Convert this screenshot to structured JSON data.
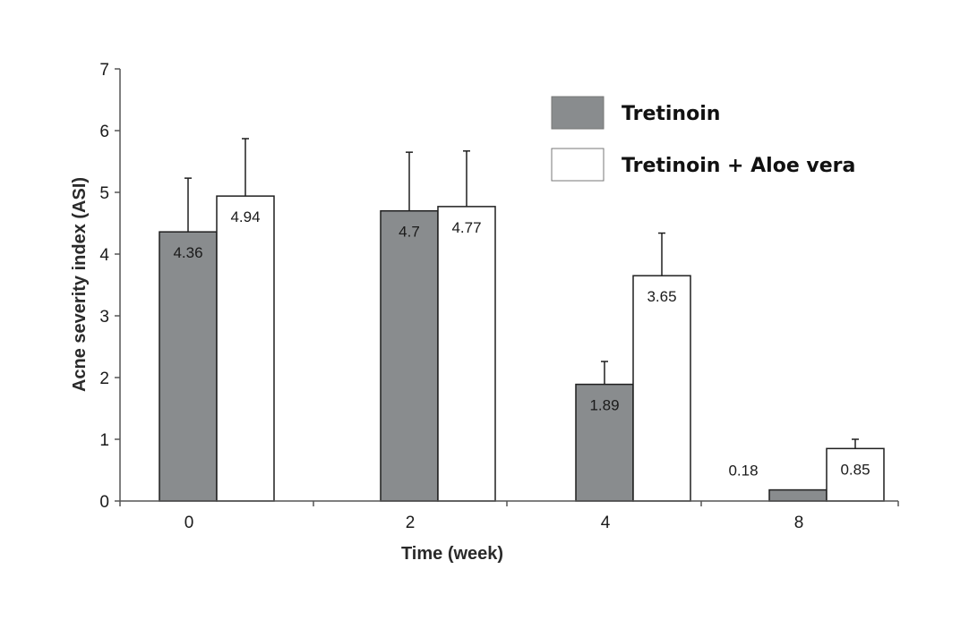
{
  "chart_data": {
    "type": "bar",
    "title": "",
    "xlabel": "Time (week)",
    "ylabel": "Acne severity index (ASI)",
    "categories": [
      "0",
      "2",
      "4",
      "8"
    ],
    "ylim": [
      0,
      7
    ],
    "yticks": [
      "0",
      "1",
      "2",
      "3",
      "4",
      "5",
      "6",
      "7"
    ],
    "grid": false,
    "legend_position": "top-right",
    "series": [
      {
        "name": "Tretinoin",
        "color": "#898c8e",
        "values": [
          4.36,
          4.7,
          1.89,
          0.18
        ],
        "errors": [
          0.87,
          0.95,
          0.37,
          0.0
        ],
        "labels": [
          "4.36",
          "4.7",
          "1.89",
          "0.18"
        ]
      },
      {
        "name": "Tretinoin + Aloe vera",
        "color": "#ffffff",
        "values": [
          4.94,
          4.77,
          3.65,
          0.85
        ],
        "errors": [
          0.93,
          0.9,
          0.69,
          0.15
        ],
        "labels": [
          "4.94",
          "4.77",
          "3.65",
          "0.85"
        ]
      }
    ]
  }
}
